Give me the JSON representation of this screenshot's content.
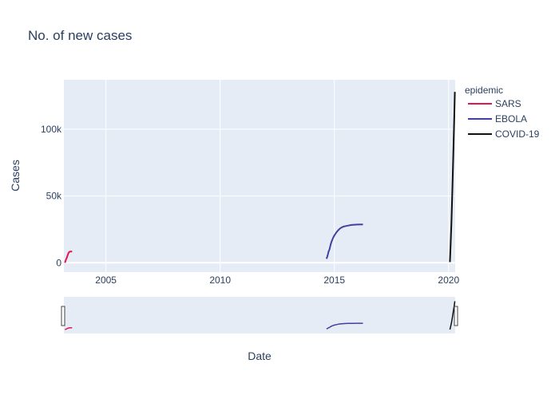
{
  "chart_data": {
    "type": "line",
    "title": "No. of new cases",
    "xlabel": "Date",
    "ylabel": "Cases",
    "xlim": [
      "2003-03-01",
      "2020-04-15"
    ],
    "ylim": [
      -7000,
      137000
    ],
    "x_ticks": [
      {
        "value": "2005-01-01",
        "label": "2005"
      },
      {
        "value": "2010-01-01",
        "label": "2010"
      },
      {
        "value": "2015-01-01",
        "label": "2015"
      },
      {
        "value": "2020-01-01",
        "label": "2020"
      }
    ],
    "y_ticks": [
      {
        "value": 0,
        "label": "0"
      },
      {
        "value": 50000,
        "label": "50k"
      },
      {
        "value": 100000,
        "label": "100k"
      }
    ],
    "grid": true,
    "legend": {
      "title": "epidemic",
      "position": "right"
    },
    "range_slider": true,
    "series": [
      {
        "name": "SARS",
        "color": "#e0164f",
        "x": [
          "2003-03-17",
          "2003-04-01",
          "2003-04-15",
          "2003-05-01",
          "2003-05-15",
          "2003-06-01",
          "2003-06-15",
          "2003-07-11"
        ],
        "y": [
          0,
          2000,
          3500,
          5800,
          7500,
          8300,
          8400,
          8450
        ]
      },
      {
        "name": "EBOLA",
        "color": "#4040a0",
        "x": [
          "2014-08-29",
          "2014-09-15",
          "2014-10-01",
          "2014-10-15",
          "2014-11-01",
          "2014-11-15",
          "2014-12-01",
          "2014-12-15",
          "2015-01-01",
          "2015-02-01",
          "2015-03-01",
          "2015-04-01",
          "2015-05-01",
          "2015-06-01",
          "2015-08-01",
          "2015-10-01",
          "2016-01-01",
          "2016-04-01"
        ],
        "y": [
          3000,
          5500,
          8500,
          10000,
          13500,
          15500,
          17500,
          19000,
          20500,
          22700,
          24300,
          25700,
          26600,
          27200,
          27800,
          28300,
          28600,
          28650
        ]
      },
      {
        "name": "COVID-19",
        "color": "#111111",
        "x": [
          "2020-01-22",
          "2020-02-01",
          "2020-02-15",
          "2020-03-01",
          "2020-03-15",
          "2020-04-01",
          "2020-04-10"
        ],
        "y": [
          500,
          12000,
          30000,
          55000,
          80000,
          110000,
          128000
        ]
      }
    ]
  }
}
